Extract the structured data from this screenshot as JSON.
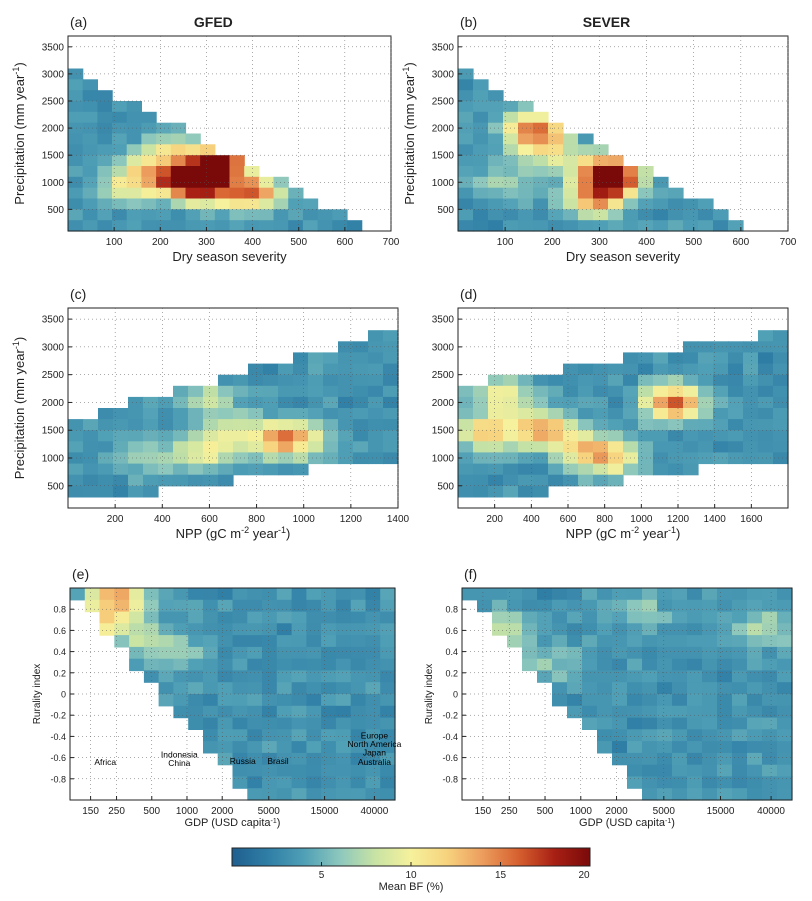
{
  "figure": {
    "colorbar": {
      "label": "Mean BF (%)",
      "ticks": [
        "5",
        "10",
        "15",
        "20"
      ],
      "tick_values": [
        5,
        10,
        15,
        20
      ],
      "range": [
        0,
        20
      ],
      "stops": [
        "#1f5f8f",
        "#2f7ea6",
        "#4f9fb6",
        "#8cc7bd",
        "#c8e3a4",
        "#f6f19c",
        "#f7d37e",
        "#ec9d5e",
        "#d6602f",
        "#a82014",
        "#7a0a0a"
      ]
    }
  },
  "chart_data": [
    {
      "id": "a",
      "panel_label": "(a)",
      "title": "GFED",
      "type": "heatmap",
      "xlabel": "Dry season severity",
      "ylabel": "Precipitation (mm year",
      "ylabel_sup": "-1",
      "ylabel_close": ")",
      "xlim": [
        0,
        700
      ],
      "ylim": [
        100,
        3700
      ],
      "xticks": [
        100,
        200,
        300,
        400,
        500,
        600,
        700
      ],
      "yticks": [
        500,
        1000,
        1500,
        2000,
        2500,
        3000,
        3500
      ],
      "hotspots": [
        [
          260,
          1050,
          16
        ],
        [
          330,
          1400,
          17
        ],
        [
          400,
          800,
          15
        ],
        [
          300,
          950,
          14
        ],
        [
          180,
          1150,
          11
        ],
        [
          220,
          1600,
          9
        ],
        [
          120,
          900,
          8
        ]
      ],
      "extent": {
        "type": "tri",
        "x0": 0,
        "y0": 3100,
        "x1": 650,
        "y1": 150
      }
    },
    {
      "id": "b",
      "panel_label": "(b)",
      "title": "SEVER",
      "type": "heatmap",
      "xlabel": "Dry season severity",
      "ylabel": "Precipitation (mm year",
      "ylabel_sup": "-1",
      "ylabel_close": ")",
      "xlim": [
        0,
        700
      ],
      "ylim": [
        100,
        3700
      ],
      "xticks": [
        100,
        200,
        300,
        400,
        500,
        600,
        700
      ],
      "yticks": [
        500,
        1000,
        1500,
        2000,
        2500,
        3000,
        3500
      ],
      "hotspots": [
        [
          160,
          1950,
          16
        ],
        [
          320,
          1200,
          17
        ],
        [
          290,
          700,
          13
        ],
        [
          330,
          1000,
          10
        ],
        [
          200,
          1500,
          9
        ],
        [
          90,
          1000,
          7
        ]
      ],
      "extent": {
        "type": "tri",
        "x0": 0,
        "y0": 3100,
        "x1": 620,
        "y1": 150
      }
    },
    {
      "id": "c",
      "panel_label": "(c)",
      "title": "",
      "type": "heatmap",
      "xlabel": "NPP (gC m",
      "xlabel_sup1": "-2",
      "xlabel_mid": " year",
      "xlabel_sup2": "-1",
      "xlabel_close": ")",
      "ylabel": "Precipitation (mm year",
      "ylabel_sup": "-1",
      "ylabel_close": ")",
      "xlim": [
        0,
        1400
      ],
      "ylim": [
        100,
        3700
      ],
      "xticks": [
        200,
        400,
        600,
        800,
        1000,
        1200,
        1400
      ],
      "yticks": [
        500,
        1000,
        1500,
        2000,
        2500,
        3000,
        3500
      ],
      "hotspots": [
        [
          900,
          1300,
          12
        ],
        [
          580,
          1100,
          9
        ],
        [
          700,
          1500,
          8
        ],
        [
          350,
          1000,
          7
        ],
        [
          600,
          2050,
          8
        ],
        [
          1000,
          1400,
          8
        ]
      ],
      "extent": {
        "type": "band",
        "xa": 20,
        "ya0": 200,
        "ya1": 1700,
        "xb": 1380,
        "yb0": 1000,
        "yb1": 3300
      }
    },
    {
      "id": "d",
      "panel_label": "(d)",
      "title": "",
      "type": "heatmap",
      "xlabel": "NPP (gC m",
      "xlabel_sup1": "-2",
      "xlabel_mid": " year",
      "xlabel_sup2": "-1",
      "xlabel_close": ")",
      "ylabel": "",
      "ylabel_sup": "",
      "ylabel_close": "",
      "xlim": [
        0,
        1800
      ],
      "ylim": [
        100,
        3700
      ],
      "xticks": [
        200,
        400,
        600,
        800,
        1000,
        1200,
        1400,
        1600
      ],
      "yticks": [
        500,
        1000,
        1500,
        2000,
        2500,
        3000,
        3500
      ],
      "hotspots": [
        [
          1170,
          2000,
          16
        ],
        [
          800,
          1050,
          14
        ],
        [
          450,
          1550,
          12
        ],
        [
          150,
          1450,
          12
        ],
        [
          240,
          2150,
          10
        ],
        [
          600,
          1250,
          8
        ]
      ],
      "extent": {
        "type": "band",
        "xa": 20,
        "ya0": 200,
        "ya1": 2300,
        "xb": 1780,
        "yb0": 1000,
        "yb1": 3300
      }
    },
    {
      "id": "e",
      "panel_label": "(e)",
      "title": "",
      "type": "heatmap",
      "xlabel": "GDP (USD capita",
      "xlabel_sup1": "-1",
      "xlabel_close": ")",
      "ylabel": "Rurality index",
      "ylabel_sup": "",
      "ylabel_close": "",
      "xscale": "log",
      "xlim": [
        100,
        60000
      ],
      "ylim": [
        -1,
        1
      ],
      "xticks": [
        150,
        250,
        500,
        1000,
        2000,
        5000,
        15000,
        40000
      ],
      "xticklabels": [
        "150",
        "250",
        "500",
        "1000",
        "2000",
        "5000",
        "15000",
        "40000"
      ],
      "yticks": [
        -0.8,
        -0.6,
        -0.4,
        -0.2,
        0,
        0.2,
        0.4,
        0.6,
        0.8
      ],
      "yticklabels": [
        "-0.8",
        "-0.6",
        "-0.4",
        "-0.2",
        "0",
        "0.2",
        "0.4",
        "0.6",
        "0.8"
      ],
      "hotspots": [
        [
          260,
          0.92,
          13
        ],
        [
          180,
          0.7,
          9
        ],
        [
          400,
          0.55,
          7
        ],
        [
          800,
          0.4,
          6
        ]
      ],
      "extent": {
        "type": "rtri",
        "xstart": 105,
        "ytop": 0.95,
        "xbot": 3000,
        "ybot": -0.9,
        "xright": 60000,
        "ybottom": -1.0
      },
      "annotations": [
        {
          "text": "Africa",
          "x": 200,
          "y": -0.67
        },
        {
          "text": "Indonesia",
          "x": 860,
          "y": -0.6
        },
        {
          "text": "China",
          "x": 860,
          "y": -0.68
        },
        {
          "text": "Russia",
          "x": 3000,
          "y": -0.66
        },
        {
          "text": "Brasil",
          "x": 6000,
          "y": -0.66
        },
        {
          "text": "Europe",
          "x": 40000,
          "y": -0.42
        },
        {
          "text": "North America",
          "x": 40000,
          "y": -0.5
        },
        {
          "text": "Japan",
          "x": 40000,
          "y": -0.58
        },
        {
          "text": "Australia",
          "x": 40000,
          "y": -0.67
        }
      ]
    },
    {
      "id": "f",
      "panel_label": "(f)",
      "title": "",
      "type": "heatmap",
      "xlabel": "GDP (USD capita",
      "xlabel_sup1": "-1",
      "xlabel_close": ")",
      "ylabel": "Rurality index",
      "ylabel_sup": "",
      "ylabel_close": "",
      "xscale": "log",
      "xlim": [
        100,
        60000
      ],
      "ylim": [
        -1,
        1
      ],
      "xticks": [
        150,
        250,
        500,
        1000,
        2000,
        5000,
        15000,
        40000
      ],
      "xticklabels": [
        "150",
        "250",
        "500",
        "1000",
        "2000",
        "5000",
        "15000",
        "40000"
      ],
      "yticks": [
        -0.8,
        -0.6,
        -0.4,
        -0.2,
        0,
        0.2,
        0.4,
        0.6,
        0.8
      ],
      "yticklabels": [
        "-0.8",
        "-0.6",
        "-0.4",
        "-0.2",
        "0",
        "0.2",
        "0.4",
        "0.6",
        "0.8"
      ],
      "hotspots": [
        [
          200,
          0.6,
          8
        ],
        [
          600,
          0.3,
          6
        ],
        [
          3000,
          0.8,
          6
        ],
        [
          35000,
          0.6,
          7
        ]
      ],
      "extent": {
        "type": "rtri",
        "xstart": 105,
        "ytop": 0.95,
        "xbot": 3000,
        "ybot": -0.9,
        "xright": 60000,
        "ybottom": -1.0
      }
    }
  ]
}
